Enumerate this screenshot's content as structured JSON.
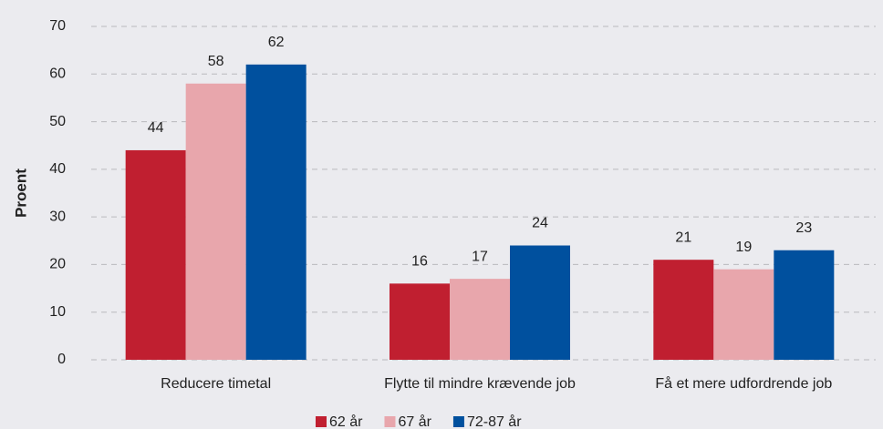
{
  "chart_data": {
    "type": "bar",
    "y_label": "Proent",
    "categories": [
      "Reducere timetal",
      "Flytte til mindre krævende job",
      "Få et mere udfordrende job"
    ],
    "series": [
      {
        "name": "62 år",
        "color": "#c01f30",
        "values": [
          44,
          16,
          21
        ]
      },
      {
        "name": "67 år",
        "color": "#e8a6ac",
        "values": [
          58,
          17,
          19
        ]
      },
      {
        "name": "72-87 år",
        "color": "#00509e",
        "values": [
          62,
          24,
          23
        ]
      }
    ],
    "ylim": [
      0,
      70
    ],
    "yticks": [
      0,
      10,
      20,
      30,
      40,
      50,
      60,
      70
    ],
    "grid": true,
    "legend": "bottom"
  }
}
